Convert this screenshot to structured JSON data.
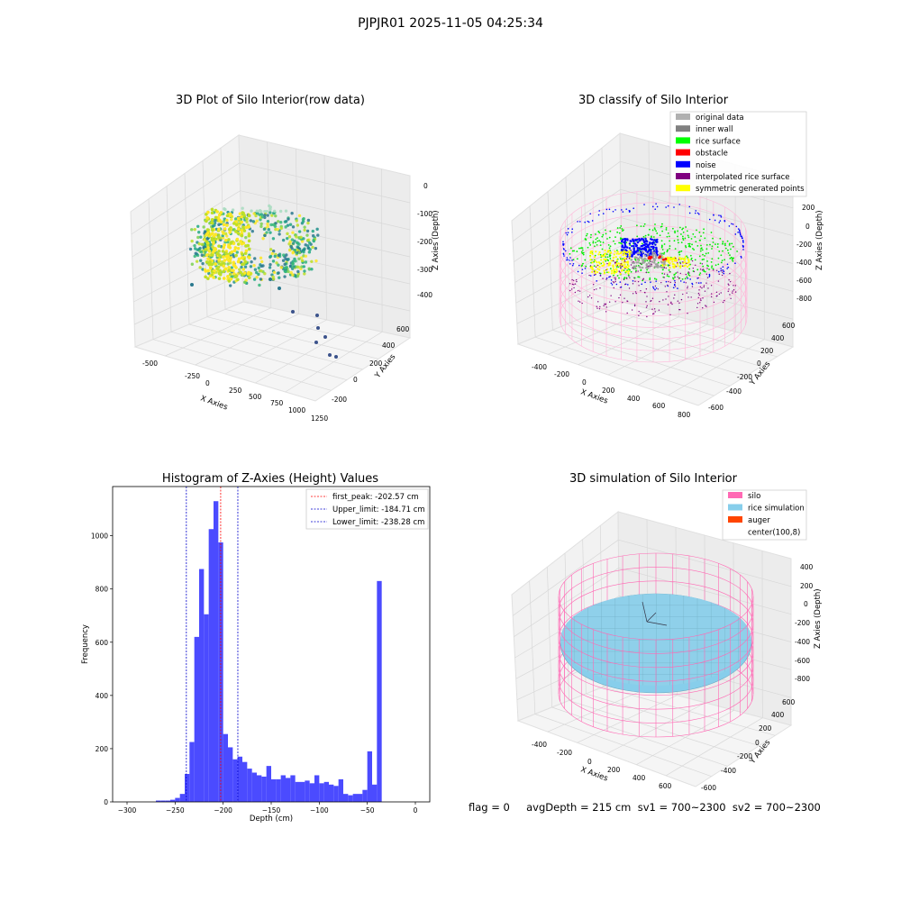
{
  "suptitle": "PJPJR01 2025-11-05 04:25:34",
  "panels": {
    "raw": {
      "title": "3D Plot of Silo Interior(row data)",
      "xlabel": "X Axies",
      "ylabel": "Y Axies",
      "zlabel": "Z Axies (Depth)",
      "xticks": [
        "-500",
        "-250",
        "0",
        "250",
        "500",
        "750",
        "1000",
        "1250"
      ],
      "yticks": [
        "-200",
        "0",
        "200",
        "400",
        "600"
      ],
      "zticks": [
        "0",
        "-100",
        "-200",
        "-300",
        "-400"
      ]
    },
    "classify": {
      "title": "3D classify of Silo Interior",
      "xlabel": "X Axies",
      "ylabel": "Y Axies",
      "zlabel": "Z Axies (Depth)",
      "xticks": [
        "-400",
        "-200",
        "0",
        "200",
        "400",
        "600",
        "800"
      ],
      "yticks": [
        "-600",
        "-400",
        "-200",
        "0",
        "200",
        "400",
        "600"
      ],
      "zticks": [
        "200",
        "0",
        "-200",
        "-400",
        "-600",
        "-800"
      ],
      "legend": [
        {
          "label": "original data",
          "color": "#b0b0b0"
        },
        {
          "label": "inner wall",
          "color": "#808080"
        },
        {
          "label": "rice surface",
          "color": "#00ff00"
        },
        {
          "label": "obstacle",
          "color": "#ff0000"
        },
        {
          "label": "noise",
          "color": "#0000ff"
        },
        {
          "label": "interpolated rice surface",
          "color": "#800080"
        },
        {
          "label": "symmetric generated points",
          "color": "#ffff00"
        }
      ]
    },
    "histogram": {
      "title": "Histogram of Z-Axies (Height) Values",
      "xlabel": "Depth (cm)",
      "ylabel": "Frequency",
      "legend": [
        {
          "label": "first_peak: -202.57 cm",
          "color": "#ff0000"
        },
        {
          "label": "Upper_limit: -184.71 cm",
          "color": "#0000cc"
        },
        {
          "label": "Lower_limit: -238.28 cm",
          "color": "#0000cc"
        }
      ]
    },
    "simulation": {
      "title": "3D simulation of Silo Interior",
      "xlabel": "X Axies",
      "ylabel": "Y Axies",
      "zlabel": "Z Axies (Depth)",
      "xticks": [
        "-400",
        "-200",
        "0",
        "200",
        "400",
        "600"
      ],
      "yticks": [
        "-600",
        "-400",
        "-200",
        "0",
        "200",
        "400",
        "600"
      ],
      "zticks": [
        "400",
        "200",
        "0",
        "-200",
        "-400",
        "-600",
        "-800"
      ],
      "legend": [
        {
          "label": "silo",
          "color": "#ff69b4"
        },
        {
          "label": "rice simulation",
          "color": "#87ceeb"
        },
        {
          "label": "auger",
          "color": "#ff4500"
        },
        {
          "label": "center(100,8)",
          "color": ""
        }
      ]
    }
  },
  "footer": "flag = 0     avgDepth = 215 cm  sv1 = 700~2300  sv2 = 700~2300",
  "chart_data": [
    {
      "type": "histogram",
      "title": "Histogram of Z-Axies (Height) Values",
      "xlabel": "Depth (cm)",
      "ylabel": "Frequency",
      "xlim": [
        -315,
        15
      ],
      "ylim": [
        0,
        1185
      ],
      "xticks": [
        -300,
        -250,
        -200,
        -150,
        -100,
        -50,
        0
      ],
      "yticks": [
        0,
        200,
        400,
        600,
        800,
        1000
      ],
      "bin_width": 5,
      "bins": [
        {
          "x0": -270,
          "count": 5
        },
        {
          "x0": -265,
          "count": 5
        },
        {
          "x0": -260,
          "count": 5
        },
        {
          "x0": -255,
          "count": 8
        },
        {
          "x0": -250,
          "count": 15
        },
        {
          "x0": -245,
          "count": 30
        },
        {
          "x0": -240,
          "count": 105
        },
        {
          "x0": -235,
          "count": 225
        },
        {
          "x0": -230,
          "count": 620
        },
        {
          "x0": -225,
          "count": 875
        },
        {
          "x0": -220,
          "count": 705
        },
        {
          "x0": -215,
          "count": 1025
        },
        {
          "x0": -210,
          "count": 1130
        },
        {
          "x0": -205,
          "count": 975
        },
        {
          "x0": -200,
          "count": 255
        },
        {
          "x0": -195,
          "count": 205
        },
        {
          "x0": -190,
          "count": 160
        },
        {
          "x0": -185,
          "count": 170
        },
        {
          "x0": -180,
          "count": 150
        },
        {
          "x0": -175,
          "count": 125
        },
        {
          "x0": -170,
          "count": 110
        },
        {
          "x0": -165,
          "count": 100
        },
        {
          "x0": -160,
          "count": 95
        },
        {
          "x0": -155,
          "count": 135
        },
        {
          "x0": -150,
          "count": 85
        },
        {
          "x0": -145,
          "count": 85
        },
        {
          "x0": -140,
          "count": 100
        },
        {
          "x0": -135,
          "count": 90
        },
        {
          "x0": -130,
          "count": 100
        },
        {
          "x0": -125,
          "count": 75
        },
        {
          "x0": -120,
          "count": 75
        },
        {
          "x0": -115,
          "count": 80
        },
        {
          "x0": -110,
          "count": 70
        },
        {
          "x0": -105,
          "count": 100
        },
        {
          "x0": -100,
          "count": 70
        },
        {
          "x0": -95,
          "count": 75
        },
        {
          "x0": -90,
          "count": 65
        },
        {
          "x0": -85,
          "count": 60
        },
        {
          "x0": -80,
          "count": 85
        },
        {
          "x0": -75,
          "count": 30
        },
        {
          "x0": -70,
          "count": 25
        },
        {
          "x0": -65,
          "count": 30
        },
        {
          "x0": -60,
          "count": 30
        },
        {
          "x0": -55,
          "count": 45
        },
        {
          "x0": -50,
          "count": 190
        },
        {
          "x0": -45,
          "count": 65
        },
        {
          "x0": -40,
          "count": 830
        }
      ],
      "vlines": [
        {
          "x": -202.57,
          "color": "#ff0000",
          "label": "first_peak: -202.57 cm"
        },
        {
          "x": -184.71,
          "color": "#0000cc",
          "label": "Upper_limit: -184.71 cm"
        },
        {
          "x": -238.28,
          "color": "#0000cc",
          "label": "Lower_limit: -238.28 cm"
        }
      ],
      "bar_color": "#4b4bff"
    }
  ]
}
